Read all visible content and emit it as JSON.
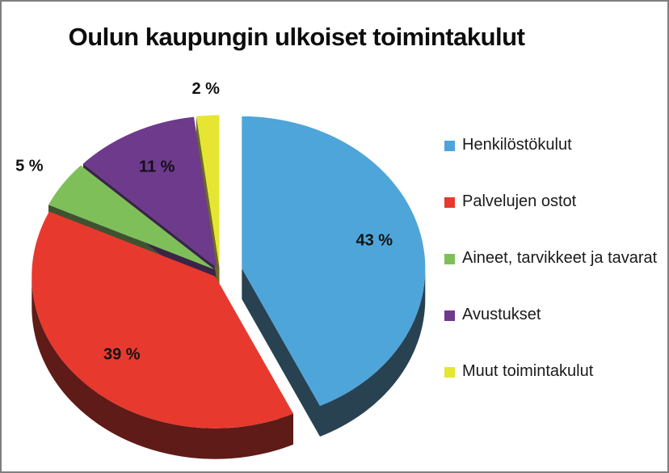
{
  "chart_data": {
    "type": "pie",
    "title": "Oulun kaupungin ulkoiset toimintakulut",
    "categories": [
      "Henkilöstökulut",
      "Palvelujen ostot",
      "Aineet, tarvikkeet ja tavarat",
      "Avustukset",
      "Muut toimintakulut"
    ],
    "values": [
      43,
      39,
      5,
      11,
      2
    ],
    "data_labels": [
      "43 %",
      "39 %",
      "5 %",
      "11 %",
      "2 %"
    ],
    "colors": [
      "#4ea5d9",
      "#e8392f",
      "#7fbf5a",
      "#6e3a8c",
      "#e6e632"
    ],
    "side_colors": [
      "#284252",
      "#5e1b17",
      "#3f5230",
      "#3a2448",
      "#6b6b25"
    ],
    "exploded": "Henkilöstökulut",
    "style": "3d",
    "legend_position": "right"
  }
}
